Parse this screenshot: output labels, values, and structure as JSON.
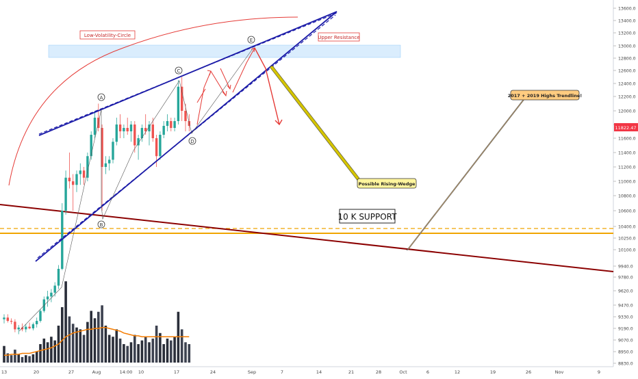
{
  "chart_data": {
    "type": "candlestick",
    "instrument_price_axis": {
      "ticks": [
        "13600.0",
        "13400.0",
        "13200.0",
        "13000.0",
        "12800.0",
        "12600.0",
        "12400.0",
        "12200.0",
        "12000.0",
        "11800.0",
        "11600.0",
        "11400.0",
        "11200.0",
        "11000.0",
        "10800.0",
        "10600.0",
        "10400.0",
        "10250.0",
        "10100.0",
        "9940.0",
        "9780.0",
        "9620.0",
        "9470.0",
        "9330.0",
        "9190.0",
        "9070.0",
        "8950.0",
        "8830.0"
      ],
      "tick_values": [
        13600,
        13400,
        13200,
        13000,
        12800,
        12600,
        12400,
        12200,
        12000,
        11800,
        11600,
        11400,
        11200,
        11000,
        10800,
        10600,
        10400,
        10250,
        10100,
        9940,
        9780,
        9620,
        9470,
        9330,
        9190,
        9070,
        8950,
        8830
      ],
      "current_price_label": "11822.47",
      "current_price_color": "#f23645"
    },
    "time_axis": {
      "ticks": [
        "13",
        "20",
        "27",
        "Aug",
        "14:00",
        "10",
        "17",
        "24",
        "Sep",
        "7",
        "14",
        "21",
        "28",
        "Oct",
        "6",
        "12",
        "19",
        "26",
        "Nov",
        "9"
      ]
    },
    "candles": [
      {
        "o": 9300,
        "h": 9360,
        "l": 9250,
        "c": 9320
      },
      {
        "o": 9320,
        "h": 9360,
        "l": 9260,
        "c": 9280
      },
      {
        "o": 9280,
        "h": 9310,
        "l": 9240,
        "c": 9270
      },
      {
        "o": 9270,
        "h": 9300,
        "l": 9150,
        "c": 9180
      },
      {
        "o": 9180,
        "h": 9230,
        "l": 9130,
        "c": 9200
      },
      {
        "o": 9200,
        "h": 9250,
        "l": 9160,
        "c": 9180
      },
      {
        "o": 9180,
        "h": 9240,
        "l": 9150,
        "c": 9210
      },
      {
        "o": 9210,
        "h": 9260,
        "l": 9180,
        "c": 9190
      },
      {
        "o": 9190,
        "h": 9260,
        "l": 9170,
        "c": 9240
      },
      {
        "o": 9240,
        "h": 9320,
        "l": 9200,
        "c": 9280
      },
      {
        "o": 9280,
        "h": 9420,
        "l": 9260,
        "c": 9400
      },
      {
        "o": 9400,
        "h": 9560,
        "l": 9380,
        "c": 9530
      },
      {
        "o": 9530,
        "h": 9620,
        "l": 9450,
        "c": 9560
      },
      {
        "o": 9560,
        "h": 9640,
        "l": 9500,
        "c": 9600
      },
      {
        "o": 9600,
        "h": 9720,
        "l": 9560,
        "c": 9680
      },
      {
        "o": 9680,
        "h": 9950,
        "l": 9640,
        "c": 9900
      },
      {
        "o": 9900,
        "h": 10700,
        "l": 9880,
        "c": 10600
      },
      {
        "o": 10600,
        "h": 11150,
        "l": 10550,
        "c": 11050
      },
      {
        "o": 11050,
        "h": 11400,
        "l": 10900,
        "c": 11000
      },
      {
        "o": 11000,
        "h": 11100,
        "l": 10600,
        "c": 10950
      },
      {
        "o": 10950,
        "h": 11150,
        "l": 10850,
        "c": 11100
      },
      {
        "o": 11100,
        "h": 11250,
        "l": 10950,
        "c": 11150
      },
      {
        "o": 11150,
        "h": 11200,
        "l": 10950,
        "c": 11050
      },
      {
        "o": 11050,
        "h": 11400,
        "l": 11000,
        "c": 11350
      },
      {
        "o": 11350,
        "h": 11700,
        "l": 11300,
        "c": 11650
      },
      {
        "o": 11650,
        "h": 12000,
        "l": 11600,
        "c": 11900
      },
      {
        "o": 11900,
        "h": 12100,
        "l": 11700,
        "c": 11750
      },
      {
        "o": 11750,
        "h": 11800,
        "l": 10600,
        "c": 11200
      },
      {
        "o": 11200,
        "h": 11350,
        "l": 11100,
        "c": 11250
      },
      {
        "o": 11250,
        "h": 11350,
        "l": 11150,
        "c": 11300
      },
      {
        "o": 11300,
        "h": 11600,
        "l": 11250,
        "c": 11550
      },
      {
        "o": 11550,
        "h": 11900,
        "l": 11500,
        "c": 11800
      },
      {
        "o": 11800,
        "h": 11950,
        "l": 11600,
        "c": 11700
      },
      {
        "o": 11700,
        "h": 11800,
        "l": 11600,
        "c": 11750
      },
      {
        "o": 11750,
        "h": 11900,
        "l": 11650,
        "c": 11700
      },
      {
        "o": 11700,
        "h": 11850,
        "l": 11550,
        "c": 11800
      },
      {
        "o": 11800,
        "h": 11850,
        "l": 11400,
        "c": 11500
      },
      {
        "o": 11500,
        "h": 11650,
        "l": 11300,
        "c": 11600
      },
      {
        "o": 11600,
        "h": 11800,
        "l": 11550,
        "c": 11750
      },
      {
        "o": 11750,
        "h": 11950,
        "l": 11650,
        "c": 11700
      },
      {
        "o": 11700,
        "h": 11850,
        "l": 11500,
        "c": 11800
      },
      {
        "o": 11800,
        "h": 11900,
        "l": 11550,
        "c": 11600
      },
      {
        "o": 11600,
        "h": 11650,
        "l": 11200,
        "c": 11350
      },
      {
        "o": 11350,
        "h": 11700,
        "l": 11300,
        "c": 11650
      },
      {
        "o": 11650,
        "h": 11850,
        "l": 11600,
        "c": 11780
      },
      {
        "o": 11780,
        "h": 11950,
        "l": 11700,
        "c": 11850
      },
      {
        "o": 11850,
        "h": 11900,
        "l": 11700,
        "c": 11750
      },
      {
        "o": 11750,
        "h": 11900,
        "l": 11700,
        "c": 11850
      },
      {
        "o": 11850,
        "h": 12450,
        "l": 11800,
        "c": 12350
      },
      {
        "o": 12350,
        "h": 12500,
        "l": 11850,
        "c": 12000
      },
      {
        "o": 12000,
        "h": 12100,
        "l": 11700,
        "c": 11850
      },
      {
        "o": 11850,
        "h": 11950,
        "l": 11700,
        "c": 11780
      }
    ],
    "volume_bars": [
      18,
      10,
      8,
      14,
      9,
      6,
      8,
      7,
      9,
      12,
      20,
      26,
      22,
      28,
      24,
      40,
      60,
      88,
      50,
      42,
      38,
      36,
      30,
      44,
      56,
      48,
      55,
      62,
      40,
      30,
      28,
      36,
      26,
      20,
      18,
      22,
      30,
      20,
      24,
      28,
      22,
      26,
      40,
      32,
      20,
      26,
      24,
      28,
      55,
      36,
      22,
      20
    ],
    "volume_ma": [
      8,
      8,
      9,
      9,
      9,
      10,
      10,
      10,
      11,
      12,
      13,
      14,
      15,
      16,
      18,
      20,
      24,
      28,
      30,
      32,
      33,
      34,
      35,
      36,
      36,
      37,
      37,
      38,
      38,
      37,
      36,
      35,
      34,
      32,
      31,
      30,
      29,
      29,
      28,
      28,
      28,
      28,
      28,
      28,
      28,
      28,
      28,
      28,
      28,
      28,
      28,
      28
    ],
    "annotations": {
      "low_volatility_circle": "Low-Volatility-Circle",
      "upper_resistance": "Upper Resistance",
      "possible_rising_wedge": "Possible Rising-Wedge",
      "highs_trendline": "2017 + 2019 Highs Trendline!",
      "support_10k": "10 K SUPPORT",
      "wave_labels": [
        "A",
        "B",
        "C",
        "D",
        "E"
      ]
    },
    "colors": {
      "bull": "#26a69a",
      "bear": "#ef5350",
      "wedge": "#1c1ca8",
      "trendline": "#8b0000",
      "support": "#f0a500",
      "arc": "#e53935",
      "resistance_zone": "#bbdefb",
      "callout_fill": "#fff59d",
      "callout_fill_2": "#ffcc80",
      "volume_ma": "#f57c00"
    }
  }
}
